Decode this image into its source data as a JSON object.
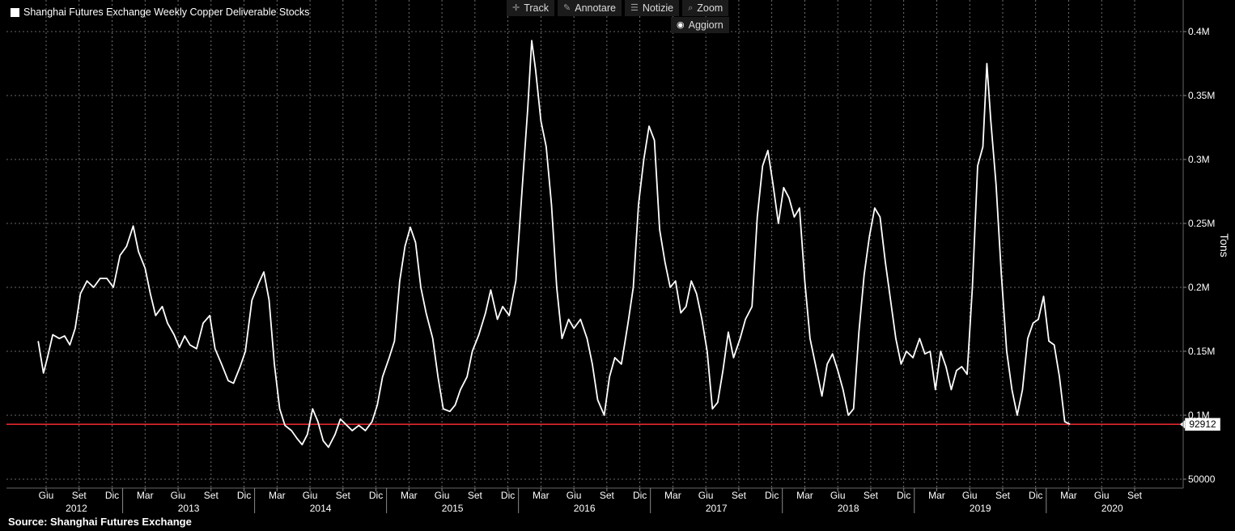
{
  "toolbar": {
    "track": "Track",
    "annotate": "Annotare",
    "news": "Notizie",
    "zoom": "Zoom",
    "refresh": "Aggiorn"
  },
  "source": "Source: Shanghai Futures Exchange",
  "chart_data": {
    "type": "line",
    "ylabel": "Tons",
    "ylim": [
      40000,
      420000
    ],
    "y_ticks": [
      {
        "value": 50000,
        "label": "50000"
      },
      {
        "value": 100000,
        "label": "0.1M"
      },
      {
        "value": 150000,
        "label": "0.15M"
      },
      {
        "value": 200000,
        "label": "0.2M"
      },
      {
        "value": 250000,
        "label": "0.25M"
      },
      {
        "value": 300000,
        "label": "0.3M"
      },
      {
        "value": 350000,
        "label": "0.35M"
      },
      {
        "value": 400000,
        "label": "0.4M"
      }
    ],
    "xlim": [
      2012.35,
      2020.95
    ],
    "month_ticks": [
      {
        "t": 2012.42,
        "label": "Giu"
      },
      {
        "t": 2012.67,
        "label": "Set"
      },
      {
        "t": 2012.92,
        "label": "Dic"
      },
      {
        "t": 2013.17,
        "label": "Mar"
      },
      {
        "t": 2013.42,
        "label": "Giu"
      },
      {
        "t": 2013.67,
        "label": "Set"
      },
      {
        "t": 2013.92,
        "label": "Dic"
      },
      {
        "t": 2014.17,
        "label": "Mar"
      },
      {
        "t": 2014.42,
        "label": "Giu"
      },
      {
        "t": 2014.67,
        "label": "Set"
      },
      {
        "t": 2014.92,
        "label": "Dic"
      },
      {
        "t": 2015.17,
        "label": "Mar"
      },
      {
        "t": 2015.42,
        "label": "Giu"
      },
      {
        "t": 2015.67,
        "label": "Set"
      },
      {
        "t": 2015.92,
        "label": "Dic"
      },
      {
        "t": 2016.17,
        "label": "Mar"
      },
      {
        "t": 2016.42,
        "label": "Giu"
      },
      {
        "t": 2016.67,
        "label": "Set"
      },
      {
        "t": 2016.92,
        "label": "Dic"
      },
      {
        "t": 2017.17,
        "label": "Mar"
      },
      {
        "t": 2017.42,
        "label": "Giu"
      },
      {
        "t": 2017.67,
        "label": "Set"
      },
      {
        "t": 2017.92,
        "label": "Dic"
      },
      {
        "t": 2018.17,
        "label": "Mar"
      },
      {
        "t": 2018.42,
        "label": "Giu"
      },
      {
        "t": 2018.67,
        "label": "Set"
      },
      {
        "t": 2018.92,
        "label": "Dic"
      },
      {
        "t": 2019.17,
        "label": "Mar"
      },
      {
        "t": 2019.42,
        "label": "Giu"
      },
      {
        "t": 2019.67,
        "label": "Set"
      },
      {
        "t": 2019.92,
        "label": "Dic"
      },
      {
        "t": 2020.17,
        "label": "Mar"
      },
      {
        "t": 2020.42,
        "label": "Giu"
      },
      {
        "t": 2020.67,
        "label": "Set"
      }
    ],
    "year_labels": [
      {
        "t": 2012.65,
        "label": "2012"
      },
      {
        "t": 2013.5,
        "label": "2013"
      },
      {
        "t": 2014.5,
        "label": "2014"
      },
      {
        "t": 2015.5,
        "label": "2015"
      },
      {
        "t": 2016.5,
        "label": "2016"
      },
      {
        "t": 2017.5,
        "label": "2017"
      },
      {
        "t": 2018.5,
        "label": "2018"
      },
      {
        "t": 2019.5,
        "label": "2019"
      },
      {
        "t": 2020.5,
        "label": "2020"
      }
    ],
    "year_separators": [
      2013.0,
      2014.0,
      2015.0,
      2016.0,
      2017.0,
      2018.0,
      2019.0,
      2020.0
    ],
    "series": [
      {
        "name": "Shanghai Futures Exchange Weekly Copper Deliverable Stocks",
        "color": "#ffffff",
        "points": [
          [
            2012.36,
            158000
          ],
          [
            2012.4,
            133000
          ],
          [
            2012.43,
            145000
          ],
          [
            2012.47,
            163000
          ],
          [
            2012.52,
            160000
          ],
          [
            2012.56,
            162000
          ],
          [
            2012.6,
            155000
          ],
          [
            2012.64,
            168000
          ],
          [
            2012.68,
            195000
          ],
          [
            2012.73,
            205000
          ],
          [
            2012.78,
            200000
          ],
          [
            2012.83,
            207000
          ],
          [
            2012.88,
            207000
          ],
          [
            2012.93,
            200000
          ],
          [
            2012.98,
            225000
          ],
          [
            2013.03,
            232000
          ],
          [
            2013.08,
            248000
          ],
          [
            2013.12,
            228000
          ],
          [
            2013.17,
            215000
          ],
          [
            2013.21,
            195000
          ],
          [
            2013.25,
            178000
          ],
          [
            2013.3,
            185000
          ],
          [
            2013.34,
            172000
          ],
          [
            2013.39,
            163000
          ],
          [
            2013.43,
            153000
          ],
          [
            2013.47,
            162000
          ],
          [
            2013.51,
            155000
          ],
          [
            2013.56,
            152000
          ],
          [
            2013.61,
            172000
          ],
          [
            2013.66,
            178000
          ],
          [
            2013.7,
            152000
          ],
          [
            2013.75,
            140000
          ],
          [
            2013.8,
            127000
          ],
          [
            2013.84,
            125000
          ],
          [
            2013.89,
            138000
          ],
          [
            2013.93,
            150000
          ],
          [
            2013.98,
            190000
          ],
          [
            2014.03,
            203000
          ],
          [
            2014.07,
            212000
          ],
          [
            2014.11,
            190000
          ],
          [
            2014.15,
            140000
          ],
          [
            2014.19,
            105000
          ],
          [
            2014.23,
            92000
          ],
          [
            2014.28,
            88000
          ],
          [
            2014.32,
            82000
          ],
          [
            2014.36,
            77000
          ],
          [
            2014.4,
            85000
          ],
          [
            2014.44,
            105000
          ],
          [
            2014.48,
            95000
          ],
          [
            2014.52,
            80000
          ],
          [
            2014.56,
            75000
          ],
          [
            2014.61,
            85000
          ],
          [
            2014.65,
            97000
          ],
          [
            2014.7,
            92000
          ],
          [
            2014.74,
            88000
          ],
          [
            2014.79,
            92000
          ],
          [
            2014.84,
            88000
          ],
          [
            2014.89,
            95000
          ],
          [
            2014.93,
            108000
          ],
          [
            2014.97,
            130000
          ],
          [
            2015.02,
            145000
          ],
          [
            2015.06,
            158000
          ],
          [
            2015.1,
            205000
          ],
          [
            2015.14,
            232000
          ],
          [
            2015.18,
            247000
          ],
          [
            2015.22,
            235000
          ],
          [
            2015.26,
            200000
          ],
          [
            2015.3,
            180000
          ],
          [
            2015.35,
            160000
          ],
          [
            2015.39,
            130000
          ],
          [
            2015.43,
            105000
          ],
          [
            2015.48,
            103000
          ],
          [
            2015.52,
            108000
          ],
          [
            2015.56,
            120000
          ],
          [
            2015.61,
            130000
          ],
          [
            2015.65,
            150000
          ],
          [
            2015.7,
            163000
          ],
          [
            2015.75,
            180000
          ],
          [
            2015.79,
            198000
          ],
          [
            2015.84,
            175000
          ],
          [
            2015.88,
            185000
          ],
          [
            2015.93,
            178000
          ],
          [
            2015.98,
            205000
          ],
          [
            2016.03,
            280000
          ],
          [
            2016.07,
            340000
          ],
          [
            2016.1,
            393000
          ],
          [
            2016.13,
            370000
          ],
          [
            2016.17,
            330000
          ],
          [
            2016.21,
            310000
          ],
          [
            2016.25,
            265000
          ],
          [
            2016.29,
            200000
          ],
          [
            2016.33,
            160000
          ],
          [
            2016.38,
            175000
          ],
          [
            2016.42,
            168000
          ],
          [
            2016.47,
            175000
          ],
          [
            2016.52,
            160000
          ],
          [
            2016.56,
            140000
          ],
          [
            2016.6,
            112000
          ],
          [
            2016.65,
            100000
          ],
          [
            2016.69,
            130000
          ],
          [
            2016.73,
            145000
          ],
          [
            2016.78,
            140000
          ],
          [
            2016.83,
            172000
          ],
          [
            2016.87,
            200000
          ],
          [
            2016.91,
            265000
          ],
          [
            2016.95,
            300000
          ],
          [
            2016.99,
            326000
          ],
          [
            2017.03,
            315000
          ],
          [
            2017.07,
            245000
          ],
          [
            2017.11,
            220000
          ],
          [
            2017.15,
            200000
          ],
          [
            2017.19,
            205000
          ],
          [
            2017.23,
            180000
          ],
          [
            2017.27,
            185000
          ],
          [
            2017.31,
            205000
          ],
          [
            2017.35,
            195000
          ],
          [
            2017.39,
            175000
          ],
          [
            2017.43,
            150000
          ],
          [
            2017.47,
            105000
          ],
          [
            2017.51,
            110000
          ],
          [
            2017.55,
            135000
          ],
          [
            2017.59,
            165000
          ],
          [
            2017.63,
            145000
          ],
          [
            2017.68,
            160000
          ],
          [
            2017.72,
            175000
          ],
          [
            2017.77,
            185000
          ],
          [
            2017.81,
            255000
          ],
          [
            2017.85,
            295000
          ],
          [
            2017.89,
            307000
          ],
          [
            2017.93,
            280000
          ],
          [
            2017.97,
            250000
          ],
          [
            2018.01,
            278000
          ],
          [
            2018.05,
            270000
          ],
          [
            2018.09,
            255000
          ],
          [
            2018.13,
            262000
          ],
          [
            2018.17,
            205000
          ],
          [
            2018.21,
            160000
          ],
          [
            2018.25,
            140000
          ],
          [
            2018.3,
            115000
          ],
          [
            2018.34,
            140000
          ],
          [
            2018.38,
            148000
          ],
          [
            2018.42,
            135000
          ],
          [
            2018.46,
            120000
          ],
          [
            2018.5,
            100000
          ],
          [
            2018.54,
            105000
          ],
          [
            2018.58,
            165000
          ],
          [
            2018.62,
            210000
          ],
          [
            2018.66,
            240000
          ],
          [
            2018.7,
            262000
          ],
          [
            2018.74,
            255000
          ],
          [
            2018.78,
            220000
          ],
          [
            2018.82,
            190000
          ],
          [
            2018.86,
            160000
          ],
          [
            2018.9,
            140000
          ],
          [
            2018.94,
            150000
          ],
          [
            2018.99,
            145000
          ],
          [
            2019.04,
            160000
          ],
          [
            2019.08,
            148000
          ],
          [
            2019.12,
            150000
          ],
          [
            2019.16,
            120000
          ],
          [
            2019.2,
            150000
          ],
          [
            2019.24,
            138000
          ],
          [
            2019.28,
            120000
          ],
          [
            2019.32,
            135000
          ],
          [
            2019.36,
            138000
          ],
          [
            2019.4,
            132000
          ],
          [
            2019.44,
            200000
          ],
          [
            2019.48,
            295000
          ],
          [
            2019.52,
            310000
          ],
          [
            2019.55,
            375000
          ],
          [
            2019.58,
            330000
          ],
          [
            2019.62,
            280000
          ],
          [
            2019.66,
            210000
          ],
          [
            2019.7,
            150000
          ],
          [
            2019.74,
            120000
          ],
          [
            2019.78,
            100000
          ],
          [
            2019.82,
            120000
          ],
          [
            2019.86,
            160000
          ],
          [
            2019.9,
            172000
          ],
          [
            2019.94,
            175000
          ],
          [
            2019.98,
            193000
          ],
          [
            2020.02,
            158000
          ],
          [
            2020.06,
            155000
          ],
          [
            2020.1,
            130000
          ],
          [
            2020.14,
            95000
          ],
          [
            2020.18,
            93000
          ]
        ]
      }
    ],
    "reference_line": {
      "value": 92912,
      "label": "92912",
      "color": "#e0262d"
    }
  }
}
